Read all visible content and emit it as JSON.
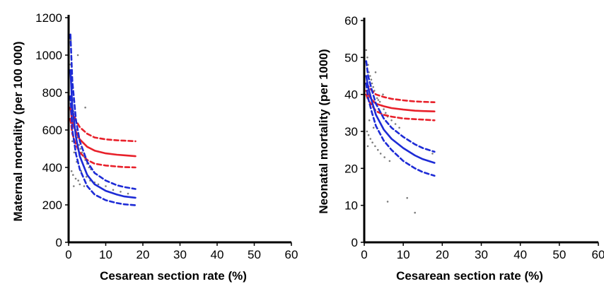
{
  "chart_data": [
    {
      "type": "scatter",
      "title": "",
      "xlabel": "Cesarean section rate (%)",
      "ylabel": "Maternal mortality (per 100 000)",
      "xlim": [
        0,
        60
      ],
      "ylim": [
        0,
        1200
      ],
      "xticks": [
        "0",
        "10",
        "20",
        "30",
        "40",
        "50",
        "60"
      ],
      "yticks": [
        "0",
        "200",
        "400",
        "600",
        "800",
        "1000",
        "1200"
      ],
      "grid": false,
      "legend": "none",
      "colors": {
        "red": "#e8202a",
        "blue": "#1d2bd6",
        "points": "#7d7d7d"
      },
      "series": [
        {
          "style": "solid",
          "color": "red",
          "x": [
            0.5,
            1,
            2,
            3,
            5,
            7,
            10,
            13,
            15,
            18
          ],
          "y": [
            720,
            640,
            590,
            550,
            510,
            490,
            475,
            468,
            465,
            460
          ]
        },
        {
          "style": "dashed",
          "color": "red",
          "x": [
            0.5,
            1,
            2,
            3,
            5,
            7,
            10,
            13,
            15,
            18
          ],
          "y": [
            780,
            700,
            650,
            615,
            580,
            560,
            550,
            545,
            543,
            540
          ]
        },
        {
          "style": "dashed",
          "color": "red",
          "x": [
            0.5,
            1,
            2,
            3,
            5,
            7,
            10,
            13,
            15,
            18
          ],
          "y": [
            660,
            580,
            520,
            480,
            440,
            420,
            410,
            405,
            402,
            400
          ]
        },
        {
          "style": "solid",
          "color": "blue",
          "x": [
            0.5,
            1,
            2,
            3,
            5,
            7,
            10,
            13,
            15,
            18
          ],
          "y": [
            920,
            720,
            560,
            460,
            360,
            310,
            275,
            255,
            245,
            238
          ]
        },
        {
          "style": "dashed",
          "color": "blue",
          "x": [
            0.5,
            1,
            2,
            3,
            5,
            7,
            10,
            13,
            15,
            18
          ],
          "y": [
            1110,
            860,
            650,
            540,
            430,
            370,
            330,
            305,
            295,
            285
          ]
        },
        {
          "style": "dashed",
          "color": "blue",
          "x": [
            0.5,
            1,
            2,
            3,
            5,
            7,
            10,
            13,
            15,
            18
          ],
          "y": [
            780,
            600,
            470,
            390,
            300,
            255,
            225,
            210,
            203,
            198
          ]
        }
      ],
      "points": {
        "x": [
          0.5,
          0.7,
          0.9,
          1.1,
          1.3,
          1.6,
          2.0,
          2.4,
          2.8,
          3.2,
          3.6,
          4.0,
          4.5,
          5.0,
          5.5,
          6.0,
          0.8,
          1.2,
          1.9,
          2.6,
          3.0,
          4.2,
          1.0,
          1.5,
          2.2,
          3.4,
          4.8,
          5.8,
          7.0,
          8.0,
          10.0,
          12.0,
          14.0,
          16.0,
          2.5,
          4.5,
          1.4,
          0.6
        ],
        "y": [
          950,
          880,
          820,
          760,
          700,
          650,
          600,
          560,
          520,
          500,
          480,
          460,
          440,
          420,
          400,
          390,
          380,
          360,
          340,
          330,
          310,
          300,
          540,
          480,
          430,
          380,
          350,
          330,
          320,
          310,
          300,
          280,
          270,
          260,
          1000,
          720,
          300,
          1080
        ]
      }
    },
    {
      "type": "scatter",
      "title": "",
      "xlabel": "Cesarean section rate (%)",
      "ylabel": "Neonatal mortality (per 1000)",
      "xlim": [
        0,
        60
      ],
      "ylim": [
        0,
        60
      ],
      "xticks": [
        "0",
        "10",
        "20",
        "30",
        "40",
        "50",
        "60"
      ],
      "yticks": [
        "0",
        "10",
        "20",
        "30",
        "40",
        "50",
        "60"
      ],
      "grid": false,
      "legend": "none",
      "colors": {
        "red": "#e8202a",
        "blue": "#1d2bd6",
        "points": "#7d7d7d"
      },
      "series": [
        {
          "style": "solid",
          "color": "red",
          "x": [
            0.5,
            1,
            2,
            3,
            5,
            7,
            10,
            13,
            15,
            18
          ],
          "y": [
            41,
            40,
            38.5,
            37.5,
            36.8,
            36.3,
            35.9,
            35.6,
            35.5,
            35.4
          ]
        },
        {
          "style": "dashed",
          "color": "red",
          "x": [
            0.5,
            1,
            2,
            3,
            5,
            7,
            10,
            13,
            15,
            18
          ],
          "y": [
            43,
            42.3,
            41,
            40,
            39.3,
            38.8,
            38.4,
            38.1,
            38.0,
            37.9
          ]
        },
        {
          "style": "dashed",
          "color": "red",
          "x": [
            0.5,
            1,
            2,
            3,
            5,
            7,
            10,
            13,
            15,
            18
          ],
          "y": [
            40,
            38.5,
            37,
            35.5,
            34.5,
            34,
            33.5,
            33.3,
            33.2,
            33.0
          ]
        },
        {
          "style": "solid",
          "color": "blue",
          "x": [
            0.5,
            1,
            2,
            3,
            5,
            7,
            10,
            13,
            15,
            18
          ],
          "y": [
            45,
            42,
            38,
            34.5,
            30.5,
            28,
            25.5,
            23.5,
            22.5,
            21.5
          ]
        },
        {
          "style": "dashed",
          "color": "blue",
          "x": [
            0.5,
            1,
            2,
            3,
            5,
            7,
            10,
            13,
            15,
            18
          ],
          "y": [
            49,
            45,
            41,
            37.5,
            33.5,
            31,
            28.5,
            26.5,
            25.5,
            24.5
          ]
        },
        {
          "style": "dashed",
          "color": "blue",
          "x": [
            0.5,
            1,
            2,
            3,
            5,
            7,
            10,
            13,
            15,
            18
          ],
          "y": [
            43,
            39,
            35,
            31.5,
            27.5,
            25,
            22,
            20,
            19,
            18
          ]
        }
      ],
      "points": {
        "x": [
          0.5,
          0.8,
          1.0,
          1.2,
          1.5,
          1.8,
          2.0,
          2.3,
          2.6,
          3.0,
          3.3,
          3.6,
          4.0,
          4.5,
          5.0,
          5.5,
          6.0,
          7.0,
          8.0,
          9.0,
          0.7,
          1.1,
          1.6,
          2.1,
          2.8,
          3.5,
          4.2,
          5.2,
          6.5,
          1.3,
          2.4,
          0.9,
          4.8,
          11.0,
          13.0,
          6.0,
          17.5,
          2.9
        ],
        "y": [
          52,
          50,
          48,
          46,
          45,
          44,
          43,
          42,
          41,
          40,
          39,
          38.5,
          38,
          37,
          36,
          35,
          34,
          33,
          32,
          31,
          30,
          29,
          28,
          27,
          26,
          25,
          24,
          23,
          22,
          33,
          31,
          26,
          40,
          12,
          8,
          11,
          24,
          46
        ]
      }
    }
  ]
}
